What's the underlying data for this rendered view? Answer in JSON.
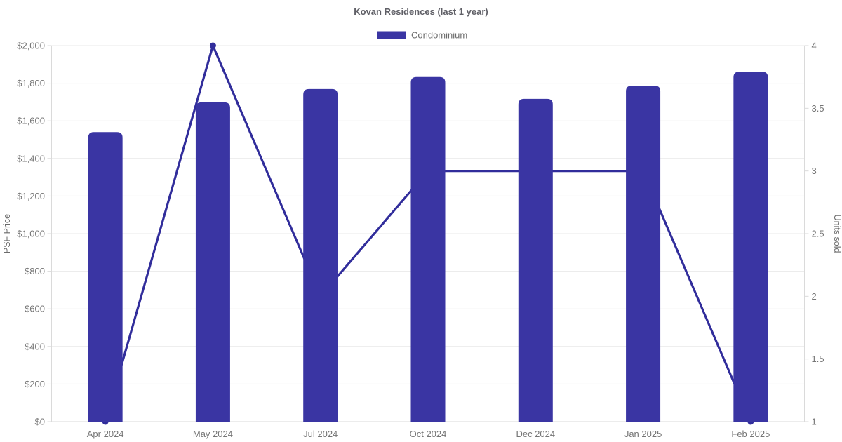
{
  "title": "Kovan Residences (last 1 year)",
  "legend": {
    "position": "top",
    "items": [
      {
        "label": "Condominium",
        "color": "#3a35a3"
      }
    ]
  },
  "colors": {
    "bar": "#3a35a3",
    "line": "#312d9b",
    "point": "#312d9b",
    "grid": "#e9e9e9",
    "axis_border": "#dadada",
    "tick_text": "#757575",
    "axis_title_text": "#6b6b6b",
    "title_text": "#5f5f66",
    "legend_text": "#6b6b6b",
    "background": "#ffffff"
  },
  "chart_data": {
    "type": "combo",
    "title": "Kovan Residences (last 1 year)",
    "categories": [
      "Apr 2024",
      "May 2024",
      "Jul 2024",
      "Oct 2024",
      "Dec 2024",
      "Jan 2025",
      "Feb 2025"
    ],
    "series": [
      {
        "name": "Condominium",
        "type": "bar",
        "axis": "left",
        "color": "#3a35a3",
        "values": [
          1540,
          1698,
          1769,
          1833,
          1717,
          1787,
          1861
        ]
      },
      {
        "name": "Units sold",
        "type": "line",
        "axis": "right",
        "color": "#312d9b",
        "values": [
          1,
          4,
          2,
          3,
          3,
          3,
          1
        ]
      }
    ],
    "left_axis": {
      "label": "PSF Price",
      "min": 0,
      "max": 2000,
      "step": 200,
      "format": "currency"
    },
    "right_axis": {
      "label": "Units sold",
      "min": 1,
      "max": 4,
      "step": 0.5,
      "format": "number"
    },
    "grid": "horizontal-left-axis-only",
    "legend_position": "top-center",
    "legend_entries": [
      "Condominium"
    ]
  }
}
